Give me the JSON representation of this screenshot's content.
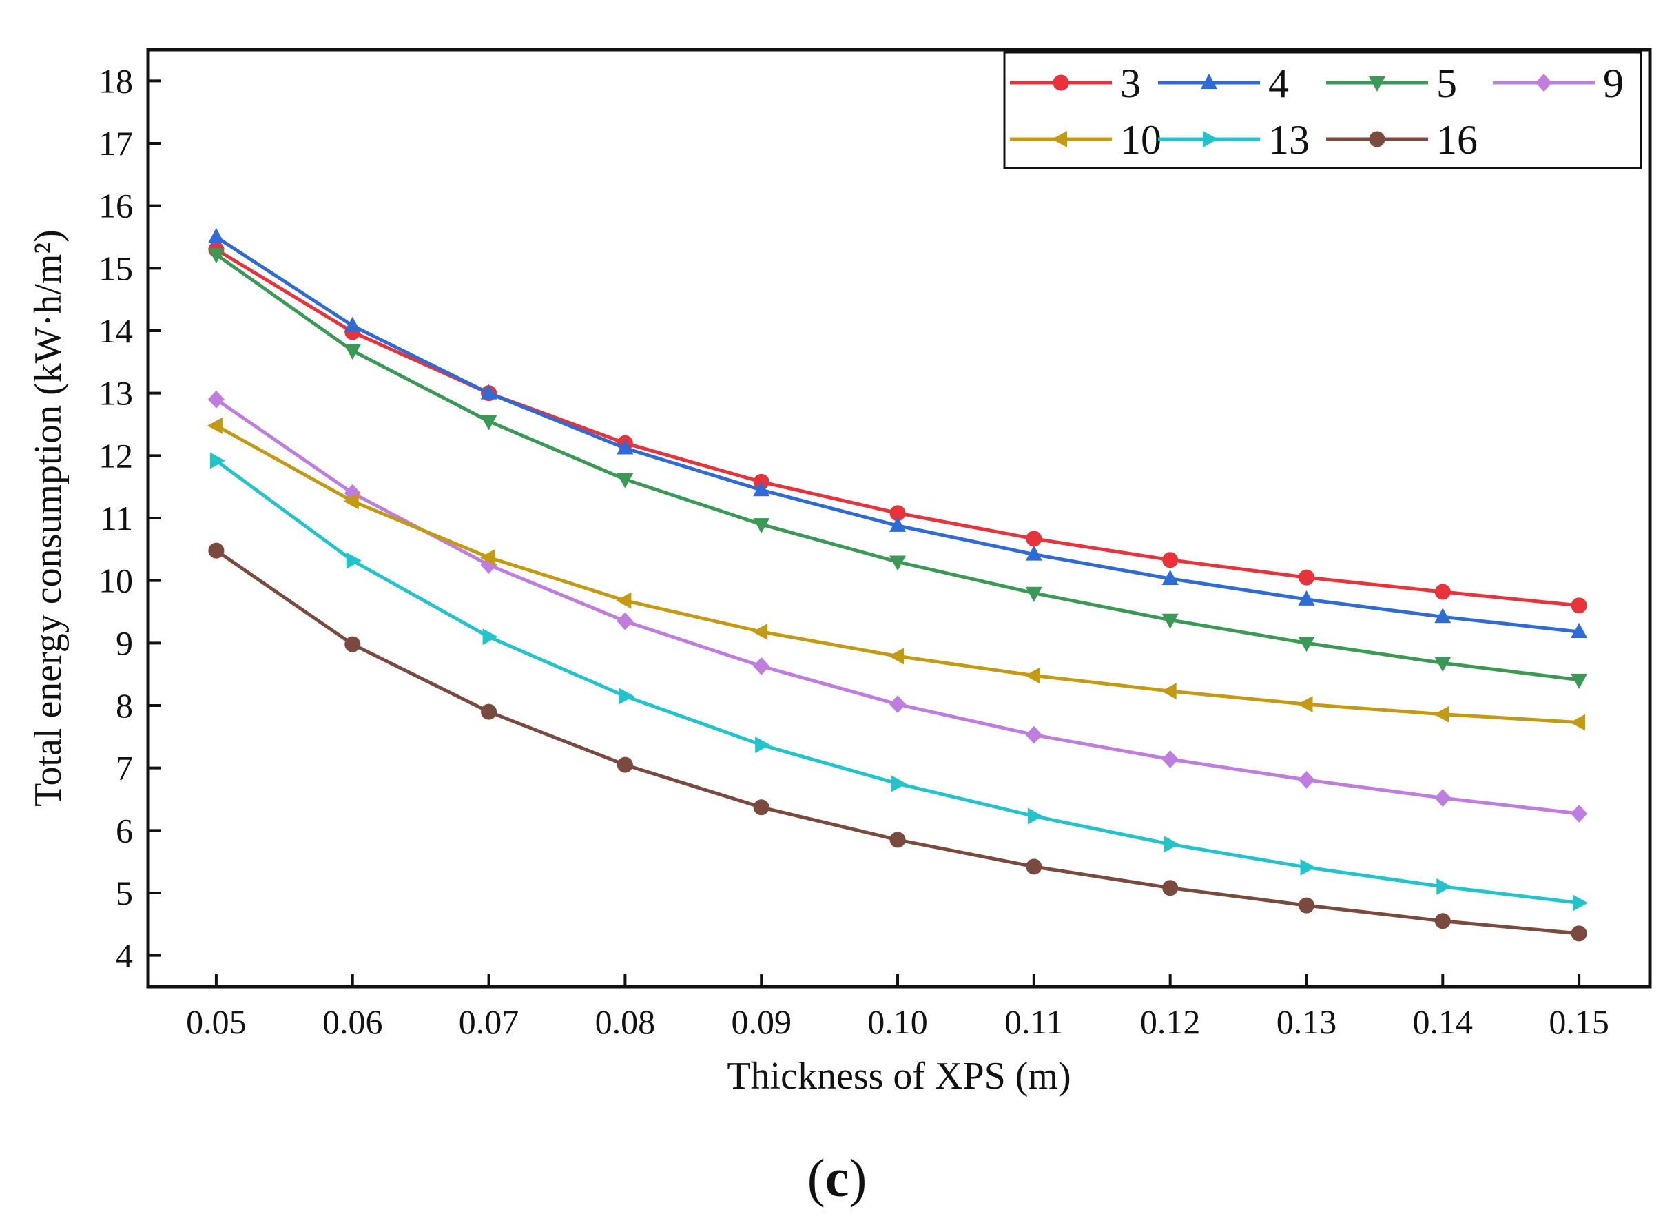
{
  "chart_data": {
    "type": "line",
    "title": "",
    "xlabel": "Thickness of XPS (m)",
    "ylabel": "Total energy consumption (kW·h/m²)",
    "x": [
      0.05,
      0.06,
      0.07,
      0.08,
      0.09,
      0.1,
      0.11,
      0.12,
      0.13,
      0.14,
      0.15
    ],
    "x_tick_labels": [
      "0.05",
      "0.06",
      "0.07",
      "0.08",
      "0.09",
      "0.10",
      "0.11",
      "0.12",
      "0.13",
      "0.14",
      "0.15"
    ],
    "y_ticks": [
      4,
      5,
      6,
      7,
      8,
      9,
      10,
      11,
      12,
      13,
      14,
      15,
      16,
      17,
      18
    ],
    "xlim": [
      0.045,
      0.1552
    ],
    "ylim": [
      3.5,
      18.5
    ],
    "grid": false,
    "legend_position": "top-right",
    "series": [
      {
        "name": "3",
        "color": "#e8333a",
        "marker": "circle",
        "values": [
          15.3,
          13.98,
          13.0,
          12.2,
          11.58,
          11.08,
          10.67,
          10.33,
          10.05,
          9.82,
          9.6
        ]
      },
      {
        "name": "4",
        "color": "#2e6bd6",
        "marker": "triangle-up",
        "values": [
          15.5,
          14.08,
          13.0,
          12.12,
          11.45,
          10.88,
          10.42,
          10.03,
          9.7,
          9.42,
          9.18
        ]
      },
      {
        "name": "5",
        "color": "#3a9a55",
        "marker": "triangle-down",
        "values": [
          15.22,
          13.68,
          12.55,
          11.62,
          10.9,
          10.3,
          9.8,
          9.37,
          9.0,
          8.68,
          8.41
        ]
      },
      {
        "name": "9",
        "color": "#c07de0",
        "marker": "diamond",
        "values": [
          12.9,
          11.4,
          10.25,
          9.35,
          8.63,
          8.02,
          7.53,
          7.14,
          6.81,
          6.52,
          6.27
        ]
      },
      {
        "name": "10",
        "color": "#c39a12",
        "marker": "triangle-left",
        "values": [
          12.48,
          11.27,
          10.37,
          9.68,
          9.18,
          8.79,
          8.48,
          8.23,
          8.02,
          7.86,
          7.73
        ]
      },
      {
        "name": "13",
        "color": "#22c4cc",
        "marker": "triangle-right",
        "values": [
          11.92,
          10.32,
          9.1,
          8.15,
          7.37,
          6.75,
          6.23,
          5.78,
          5.41,
          5.1,
          4.84
        ]
      },
      {
        "name": "16",
        "color": "#7b4a3e",
        "marker": "circle",
        "values": [
          10.48,
          8.98,
          7.9,
          7.05,
          6.37,
          5.85,
          5.42,
          5.08,
          4.8,
          4.55,
          4.35
        ]
      }
    ]
  },
  "caption": {
    "label": "(c)",
    "open": "(",
    "letter": "c",
    "close": ")"
  }
}
